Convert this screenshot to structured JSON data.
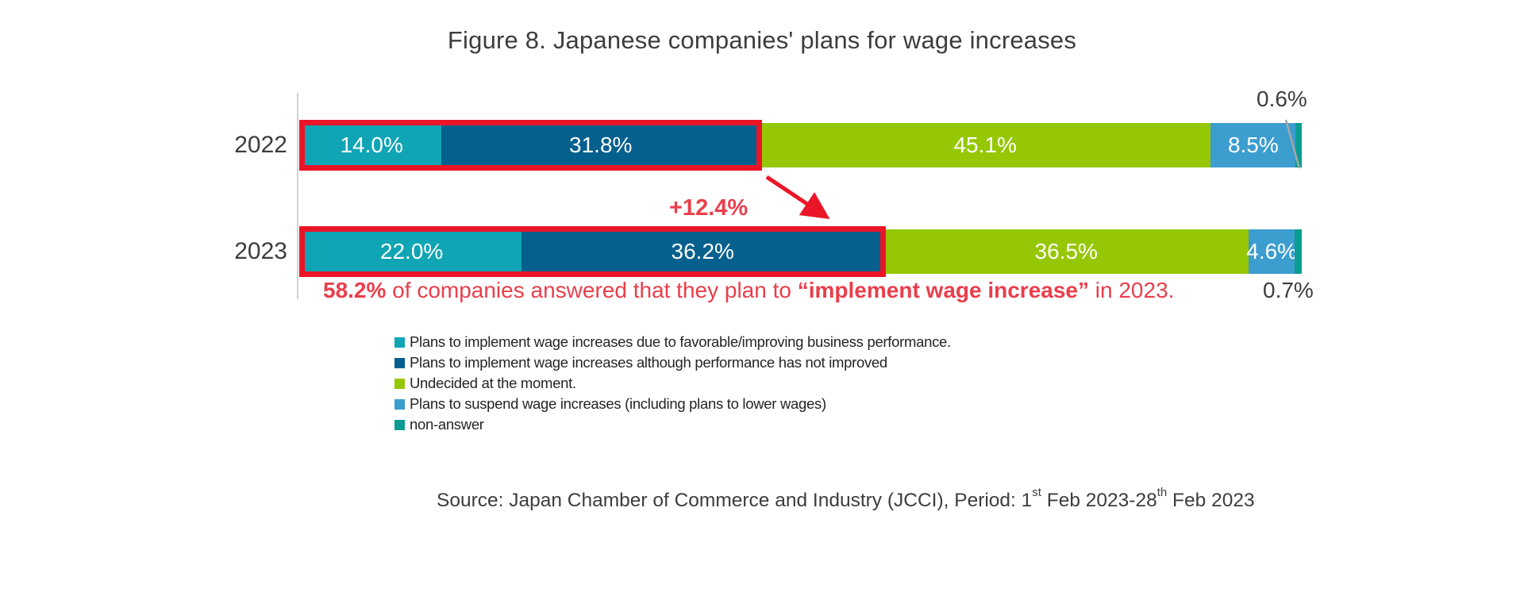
{
  "title": "Figure 8. Japanese companies' plans for wage increases",
  "colors": {
    "series_teal": "#10a5b5",
    "series_dark_blue": "#05608d",
    "series_green": "#96c705",
    "series_light_blue": "#3c9dcf",
    "series_teal_dark": "#0a9c92",
    "highlight_red": "#eb1528",
    "red_text": "#e93e4b",
    "axis_gray": "#d2d2d2",
    "leader_gray": "#a6a6a6",
    "text_dark": "#3d3d3d",
    "bar_label_white": "#ffffff"
  },
  "chart_data": {
    "type": "bar",
    "orientation": "horizontal",
    "stacked": true,
    "grid": false,
    "unit": "%",
    "xlim": [
      0,
      100
    ],
    "legend_position": "bottom-left",
    "categories": [
      "2022",
      "2023"
    ],
    "series": [
      {
        "name": "Plans to implement wage increases due to favorable/improving business performance.",
        "color": "#10a5b5",
        "values": [
          14.0,
          22.0
        ]
      },
      {
        "name": "Plans to implement wage increases although performance has not improved",
        "color": "#05608d",
        "values": [
          31.8,
          36.2
        ]
      },
      {
        "name": "Undecided at the moment.",
        "color": "#96c705",
        "values": [
          45.1,
          36.5
        ]
      },
      {
        "name": "Plans to suspend wage increases (including plans to lower wages)",
        "color": "#3c9dcf",
        "values": [
          8.5,
          4.6
        ]
      },
      {
        "name": "non-answer",
        "color": "#0a9c92",
        "values": [
          0.6,
          0.7
        ],
        "label_outside": true
      }
    ],
    "outside_labels": [
      {
        "category": "2022",
        "series": "non-answer",
        "text": "0.6%",
        "position": "above-right"
      },
      {
        "category": "2023",
        "series": "non-answer",
        "text": "0.7%",
        "position": "below-right"
      }
    ]
  },
  "annotations": {
    "delta_label": "+12.4%",
    "highlight_series_count": 2,
    "note_parts": [
      {
        "text": "58.2%",
        "bold": true
      },
      {
        "text": " of companies answered that they plan to ",
        "bold": false
      },
      {
        "text": "“implement wage increase”",
        "bold": true
      },
      {
        "text": " in 2023.",
        "bold": false
      }
    ]
  },
  "source": {
    "parts": [
      {
        "text": "Source: Japan Chamber of Commerce and Industry (JCCI), Period: 1"
      },
      {
        "text": "st",
        "sup": true
      },
      {
        "text": " Feb 2023-28"
      },
      {
        "text": "th",
        "sup": true
      },
      {
        "text": " Feb 2023"
      }
    ]
  }
}
